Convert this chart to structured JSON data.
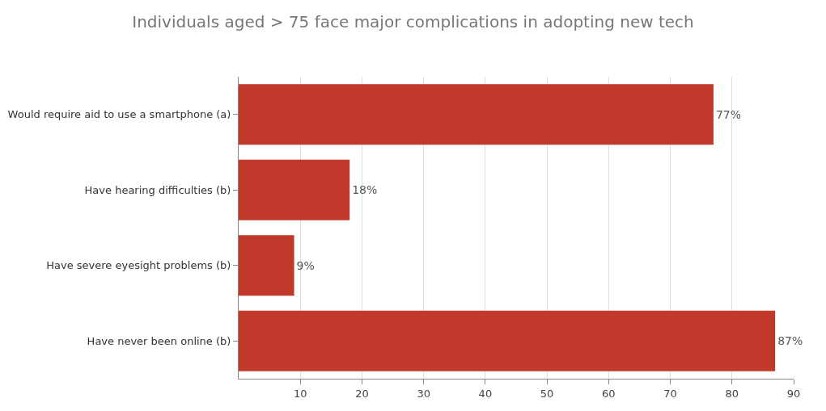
{
  "chart_data": {
    "type": "bar",
    "orientation": "horizontal",
    "title": "Individuals aged > 75 face major complications in adopting new tech",
    "categories": [
      "Would require aid to use a smartphone (a)",
      "Have hearing difficulties (b)",
      "Have severe eyesight problems (b)",
      "Have never been online (b)"
    ],
    "values": [
      77,
      18,
      9,
      87
    ],
    "value_labels": [
      "77%",
      "18%",
      "9%",
      "87%"
    ],
    "color": "#c0392b",
    "xlim": [
      0,
      90
    ],
    "xticks": [
      10,
      20,
      30,
      40,
      50,
      60,
      70,
      80,
      90
    ],
    "grid": "x",
    "legend": false
  }
}
